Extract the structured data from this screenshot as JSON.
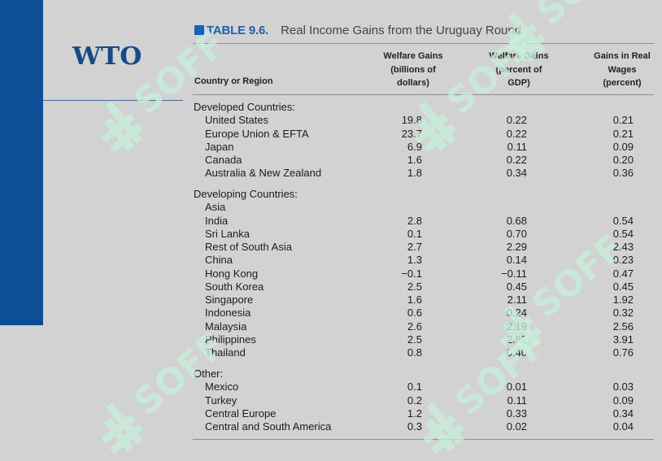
{
  "logo": "WTO",
  "title": {
    "label": "TABLE 9.6.",
    "name": "Real Income Gains from the Uruguay Round"
  },
  "columns": {
    "region": "Country or Region",
    "welfare_billions": [
      "Welfare Gains",
      "(billions of",
      "dollars)"
    ],
    "welfare_percent": [
      "Welfare Gains",
      "(percent of",
      "GDP)"
    ],
    "real_wages": [
      "Gains in Real",
      "Wages",
      "(percent)"
    ]
  },
  "groups": [
    {
      "label": "Developed Countries:",
      "rows": [
        {
          "name": "United States",
          "welfare_billions": "19.8",
          "welfare_percent": "0.22",
          "real_wages": "0.21"
        },
        {
          "name": "Europe Union & EFTA",
          "welfare_billions": "23.7",
          "welfare_percent": "0.22",
          "real_wages": "0.21"
        },
        {
          "name": "Japan",
          "welfare_billions": "6.9",
          "welfare_percent": "0.11",
          "real_wages": "0.09"
        },
        {
          "name": "Canada",
          "welfare_billions": "1.6",
          "welfare_percent": "0.22",
          "real_wages": "0.20"
        },
        {
          "name": "Australia & New Zealand",
          "welfare_billions": "1.8",
          "welfare_percent": "0.34",
          "real_wages": "0.36"
        }
      ]
    },
    {
      "label": "Developing Countries:",
      "rows": [
        {
          "name": "Asia",
          "welfare_billions": "",
          "welfare_percent": "",
          "real_wages": ""
        },
        {
          "name": "India",
          "welfare_billions": "2.8",
          "welfare_percent": "0.68",
          "real_wages": "0.54"
        },
        {
          "name": "Sri Lanka",
          "welfare_billions": "0.1",
          "welfare_percent": "0.70",
          "real_wages": "0.54"
        },
        {
          "name": "Rest of South Asia",
          "welfare_billions": "2.7",
          "welfare_percent": "2.29",
          "real_wages": "2.43"
        },
        {
          "name": "China",
          "welfare_billions": "1.3",
          "welfare_percent": "0.14",
          "real_wages": "0.23"
        },
        {
          "name": "Hong Kong",
          "welfare_billions": "−0.1",
          "welfare_percent": "−0.11",
          "real_wages": "0.47"
        },
        {
          "name": "South Korea",
          "welfare_billions": "2.5",
          "welfare_percent": "0.45",
          "real_wages": "0.45"
        },
        {
          "name": "Singapore",
          "welfare_billions": "1.6",
          "welfare_percent": "2.11",
          "real_wages": "1.92"
        },
        {
          "name": "Indonesia",
          "welfare_billions": "0.6",
          "welfare_percent": "0.24",
          "real_wages": "0.32"
        },
        {
          "name": "Malaysia",
          "welfare_billions": "2.6",
          "welfare_percent": "2.19",
          "real_wages": "2.56"
        },
        {
          "name": "Philippines",
          "welfare_billions": "2.5",
          "welfare_percent": "2.82",
          "real_wages": "3.91"
        },
        {
          "name": "Thailand",
          "welfare_billions": "0.8",
          "welfare_percent": "0.40",
          "real_wages": "0.76"
        }
      ]
    },
    {
      "label": "Other:",
      "rows": [
        {
          "name": "Mexico",
          "welfare_billions": "0.1",
          "welfare_percent": "0.01",
          "real_wages": "0.03"
        },
        {
          "name": "Turkey",
          "welfare_billions": "0.2",
          "welfare_percent": "0.11",
          "real_wages": "0.09"
        },
        {
          "name": "Central Europe",
          "welfare_billions": "1.2",
          "welfare_percent": "0.33",
          "real_wages": "0.34"
        },
        {
          "name": "Central and South America",
          "welfare_billions": "0.3",
          "welfare_percent": "0.02",
          "real_wages": "0.04"
        }
      ]
    }
  ],
  "watermark": {
    "text": "SOFF",
    "color": "#c8f0dc"
  }
}
